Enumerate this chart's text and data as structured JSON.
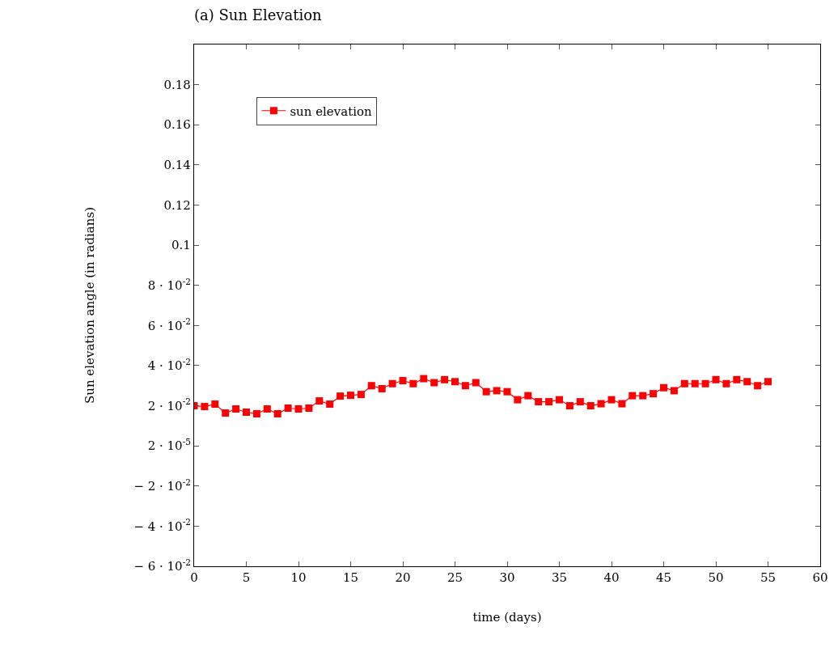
{
  "chart_data": {
    "type": "line",
    "title": "(a) Sun Elevation",
    "xlabel": "time (days)",
    "ylabel": "Sun elevation angle (in radians)",
    "x": [
      0,
      1,
      2,
      3,
      4,
      5,
      6,
      7,
      8,
      9,
      10,
      11,
      12,
      13,
      14,
      15,
      16,
      17,
      18,
      19,
      20,
      21,
      22,
      23,
      24,
      25,
      26,
      27,
      28,
      29,
      30,
      31,
      32,
      33,
      34,
      35,
      36,
      37,
      38,
      39,
      40,
      41,
      42,
      43,
      44,
      45,
      46,
      47,
      48,
      49,
      50,
      51,
      52,
      53,
      54,
      55
    ],
    "series": [
      {
        "name": "sun elevation",
        "color": "#ff0000",
        "values": [
          0.02,
          0.0196,
          0.0208,
          0.0164,
          0.0184,
          0.0168,
          0.016,
          0.0184,
          0.016,
          0.0188,
          0.0184,
          0.0188,
          0.0224,
          0.0208,
          0.0248,
          0.0252,
          0.0256,
          0.03,
          0.0285,
          0.031,
          0.0325,
          0.031,
          0.0335,
          0.0315,
          0.033,
          0.032,
          0.03,
          0.0315,
          0.027,
          0.0275,
          0.027,
          0.023,
          0.025,
          0.022,
          0.022,
          0.023,
          0.02,
          0.022,
          0.02,
          0.021,
          0.023,
          0.021,
          0.025,
          0.025,
          0.026,
          0.029,
          0.0275,
          0.031,
          0.031,
          0.031,
          0.033,
          0.031,
          0.033,
          0.032,
          0.03,
          0.032
        ]
      }
    ],
    "xlim": [
      0,
      60
    ],
    "xticks": [
      0,
      5,
      10,
      15,
      20,
      25,
      30,
      35,
      40,
      45,
      50,
      55,
      60
    ],
    "ylim": [
      -0.06,
      0.2
    ],
    "yticks": [
      {
        "value": -0.06,
        "label": "− 6 · 10$^{-2}$"
      },
      {
        "value": -0.04,
        "label": "− 4 · 10$^{-2}$"
      },
      {
        "value": -0.02,
        "label": "− 2 · 10$^{-2}$"
      },
      {
        "value": 2e-05,
        "label": "2 · 10$^{-5}$"
      },
      {
        "value": 0.02,
        "label": "2 · 10$^{-2}$"
      },
      {
        "value": 0.04,
        "label": "4 · 10$^{-2}$"
      },
      {
        "value": 0.06,
        "label": "6 · 10$^{-2}$"
      },
      {
        "value": 0.08,
        "label": "8 · 10$^{-2}$"
      },
      0.1,
      0.12,
      0.14,
      0.16,
      0.18
    ],
    "marker": "square",
    "line_style": "solid",
    "legend": "top left"
  }
}
